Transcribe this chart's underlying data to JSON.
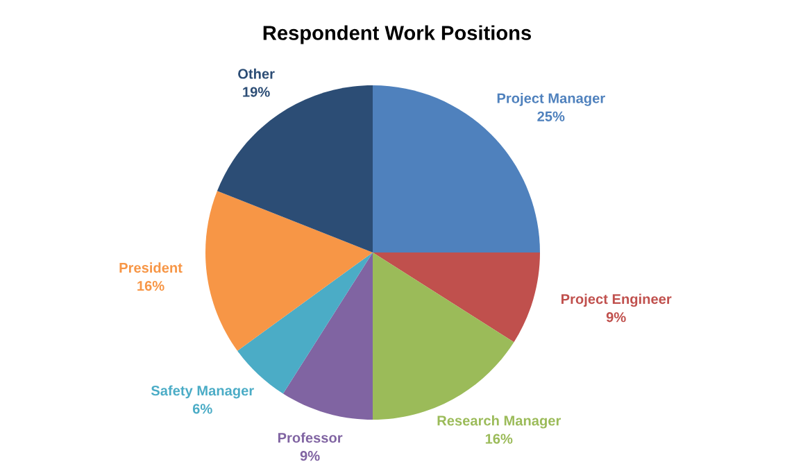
{
  "chart_data": {
    "type": "pie",
    "title": "Respondent Work Positions",
    "categories": [
      "Project Manager",
      "Project Engineer",
      "Research Manager",
      "Professor",
      "Safety Manager",
      "President",
      "Other"
    ],
    "values": [
      25,
      9,
      16,
      9,
      6,
      16,
      19
    ],
    "value_labels": [
      "25%",
      "9%",
      "16%",
      "9%",
      "6%",
      "16%",
      "19%"
    ],
    "colors": [
      "#4f81bd",
      "#c0504d",
      "#9bbb59",
      "#8064a2",
      "#4bacc6",
      "#f79646",
      "#2c4d75"
    ],
    "legend": false
  }
}
